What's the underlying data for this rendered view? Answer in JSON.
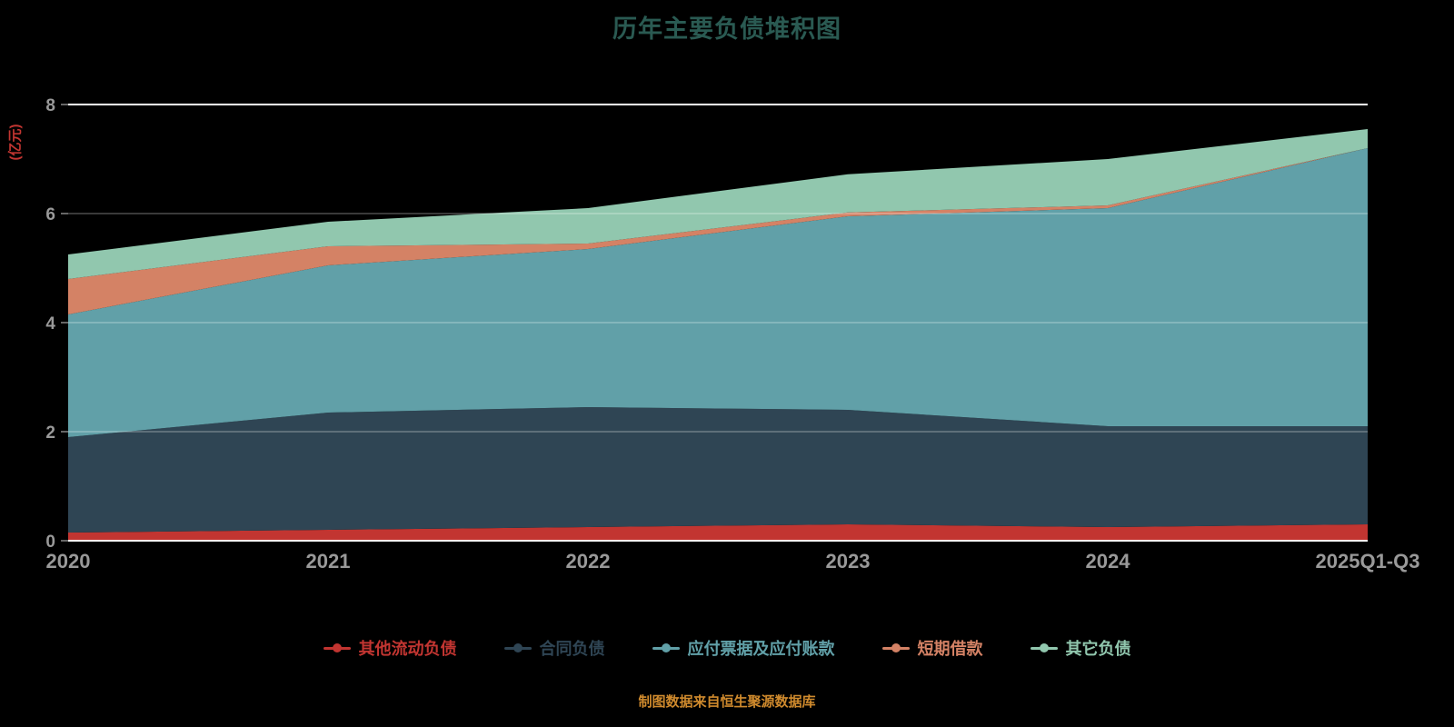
{
  "page": {
    "title": "历年主要负债堆积图",
    "footer": "制图数据来自恒生聚源数据库"
  },
  "colors": {
    "background": "#000000",
    "title": "#2a5a52",
    "axis_label": "#999999",
    "ylabel": "#c23531",
    "footer": "#cf8a2d",
    "axis_line": "#ffffff",
    "gridline": "rgba(255,255,255,0.45)"
  },
  "chart_data": {
    "type": "area",
    "stacked": true,
    "title": "历年主要负债堆积图",
    "ylabel": "(亿元)",
    "xlabel": "",
    "ylim": [
      0,
      8
    ],
    "yticks": [
      0,
      2,
      4,
      6,
      8
    ],
    "grid": true,
    "legend_position": "bottom",
    "categories": [
      "2020",
      "2021",
      "2022",
      "2023",
      "2024",
      "2025Q1-Q3"
    ],
    "series": [
      {
        "name": "其他流动负债",
        "color": "#c23531",
        "values": [
          0.15,
          0.2,
          0.25,
          0.3,
          0.25,
          0.3
        ]
      },
      {
        "name": "合同负债",
        "color": "#2f4554",
        "values": [
          1.75,
          2.15,
          2.2,
          2.1,
          1.85,
          1.8
        ]
      },
      {
        "name": "应付票据及应付账款",
        "color": "#61a0a8",
        "values": [
          2.25,
          2.7,
          2.9,
          3.55,
          4.0,
          5.1
        ]
      },
      {
        "name": "短期借款",
        "color": "#d48265",
        "values": [
          0.65,
          0.35,
          0.1,
          0.07,
          0.05,
          0.0
        ]
      },
      {
        "name": "其它负债",
        "color": "#91c7ae",
        "values": [
          0.45,
          0.45,
          0.65,
          0.7,
          0.85,
          0.35
        ]
      }
    ],
    "stacked_totals": [
      5.25,
      5.85,
      6.1,
      6.72,
      7.0,
      7.55
    ]
  }
}
